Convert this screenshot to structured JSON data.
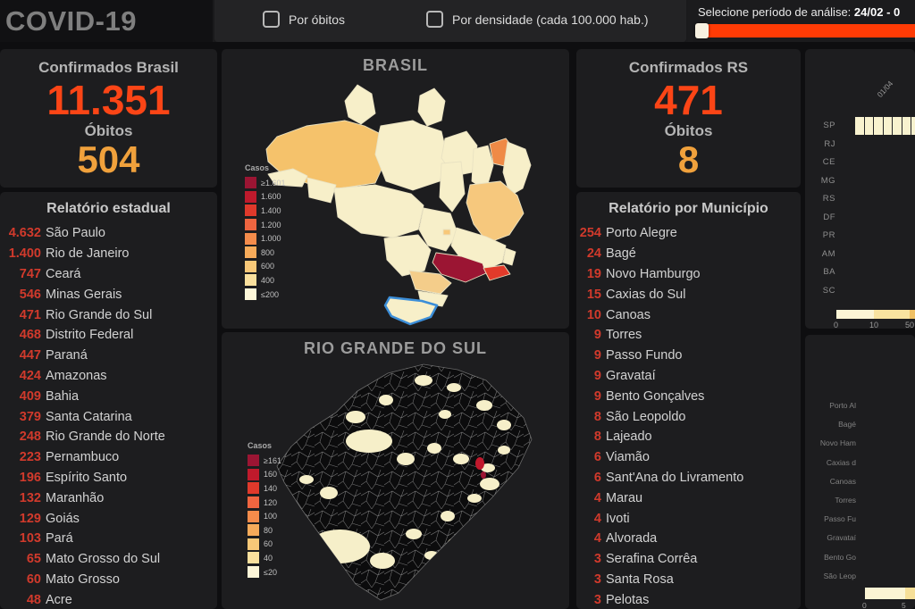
{
  "header": {
    "title": "COVID-19",
    "checkboxes": [
      {
        "label": "Por óbitos",
        "checked": false
      },
      {
        "label": "Por densidade (cada 100.000 hab.)",
        "checked": false
      }
    ],
    "period_label": "Selecione período de análise:",
    "period_value": "24/02 - 0",
    "slider_color": "#ff3b05"
  },
  "brazil_stats": {
    "title": "Confirmados Brasil",
    "confirmed": "11.351",
    "deaths_label": "Óbitos",
    "deaths": "504"
  },
  "state_report": {
    "title": "Relatório estadual",
    "rows": [
      {
        "value": "4.632",
        "name": "São Paulo"
      },
      {
        "value": "1.400",
        "name": "Rio de Janeiro"
      },
      {
        "value": "747",
        "name": "Ceará"
      },
      {
        "value": "546",
        "name": "Minas Gerais"
      },
      {
        "value": "471",
        "name": "Rio Grande do Sul"
      },
      {
        "value": "468",
        "name": "Distrito Federal"
      },
      {
        "value": "447",
        "name": "Paraná"
      },
      {
        "value": "424",
        "name": "Amazonas"
      },
      {
        "value": "409",
        "name": "Bahia"
      },
      {
        "value": "379",
        "name": "Santa Catarina"
      },
      {
        "value": "248",
        "name": "Rio Grande do Norte"
      },
      {
        "value": "223",
        "name": "Pernambuco"
      },
      {
        "value": "196",
        "name": "Espírito Santo"
      },
      {
        "value": "132",
        "name": "Maranhão"
      },
      {
        "value": "129",
        "name": "Goiás"
      },
      {
        "value": "103",
        "name": "Pará"
      },
      {
        "value": "65",
        "name": "Mato Grosso do Sul"
      },
      {
        "value": "60",
        "name": "Mato Grosso"
      },
      {
        "value": "48",
        "name": "Acre"
      }
    ]
  },
  "brazil_map": {
    "title": "BRASIL",
    "legend_title": "Casos",
    "legend": [
      {
        "label": "≥1.601",
        "color": "#9b1533"
      },
      {
        "label": "1.600",
        "color": "#bf1a2c"
      },
      {
        "label": "1.400",
        "color": "#e0392b"
      },
      {
        "label": "1.200",
        "color": "#ef6540"
      },
      {
        "label": "1.000",
        "color": "#f58c4b"
      },
      {
        "label": "800",
        "color": "#f7ab5a"
      },
      {
        "label": "600",
        "color": "#f8c878"
      },
      {
        "label": "400",
        "color": "#fae09d"
      },
      {
        "label": "≤200",
        "color": "#fdf6d8"
      }
    ]
  },
  "rs_map": {
    "title": "RIO GRANDE DO SUL",
    "legend_title": "Casos",
    "legend": [
      {
        "label": "≥161",
        "color": "#9b1533"
      },
      {
        "label": "160",
        "color": "#bf1a2c"
      },
      {
        "label": "140",
        "color": "#e0392b"
      },
      {
        "label": "120",
        "color": "#ef6540"
      },
      {
        "label": "100",
        "color": "#f58c4b"
      },
      {
        "label": "80",
        "color": "#f7ab5a"
      },
      {
        "label": "60",
        "color": "#f8c878"
      },
      {
        "label": "40",
        "color": "#fae09d"
      },
      {
        "label": "≤20",
        "color": "#fdf6d8"
      }
    ]
  },
  "rs_stats": {
    "title": "Confirmados RS",
    "confirmed": "471",
    "deaths_label": "Óbitos",
    "deaths": "8"
  },
  "municipality_report": {
    "title": "Relatório por Município",
    "rows": [
      {
        "value": "254",
        "name": "Porto Alegre"
      },
      {
        "value": "24",
        "name": "Bagé"
      },
      {
        "value": "19",
        "name": "Novo Hamburgo"
      },
      {
        "value": "15",
        "name": "Caxias do Sul"
      },
      {
        "value": "10",
        "name": "Canoas"
      },
      {
        "value": "9",
        "name": "Torres"
      },
      {
        "value": "9",
        "name": "Passo Fundo"
      },
      {
        "value": "9",
        "name": "Gravataí"
      },
      {
        "value": "9",
        "name": "Bento Gonçalves"
      },
      {
        "value": "8",
        "name": "São Leopoldo"
      },
      {
        "value": "8",
        "name": "Lajeado"
      },
      {
        "value": "6",
        "name": "Viamão"
      },
      {
        "value": "6",
        "name": "Sant'Ana do Livramento"
      },
      {
        "value": "4",
        "name": "Marau"
      },
      {
        "value": "4",
        "name": "Ivoti"
      },
      {
        "value": "4",
        "name": "Alvorada"
      },
      {
        "value": "3",
        "name": "Serafina Corrêa"
      },
      {
        "value": "3",
        "name": "Santa Rosa"
      },
      {
        "value": "3",
        "name": "Pelotas"
      }
    ]
  },
  "state_heatmap": {
    "date_label": "01/04",
    "row_labels": [
      "SP",
      "RJ",
      "CE",
      "MG",
      "RS",
      "DF",
      "PR",
      "AM",
      "BA",
      "SC"
    ],
    "cells_row": "SP",
    "cell_count": 7,
    "cell_color": "#f8f2cf",
    "scale_ticks": [
      "0",
      "10",
      "50"
    ]
  },
  "municipality_heatmap": {
    "row_labels": [
      "Porto Al",
      "Bagé",
      "Novo Ham",
      "Caxias d",
      "Canoas",
      "Torres",
      "Passo Fu",
      "Gravataí",
      "Bento Go",
      "São Leop"
    ],
    "scale_ticks": [
      "0",
      "5"
    ]
  },
  "colors": {
    "confirmed_number": "#fb4516",
    "deaths_number": "#f0a13c",
    "list_number": "#d13a2c",
    "panel_bg": "#1d1d1f",
    "page_bg": "#0e0e10",
    "selected_state_outline": "#3c8ed8"
  }
}
